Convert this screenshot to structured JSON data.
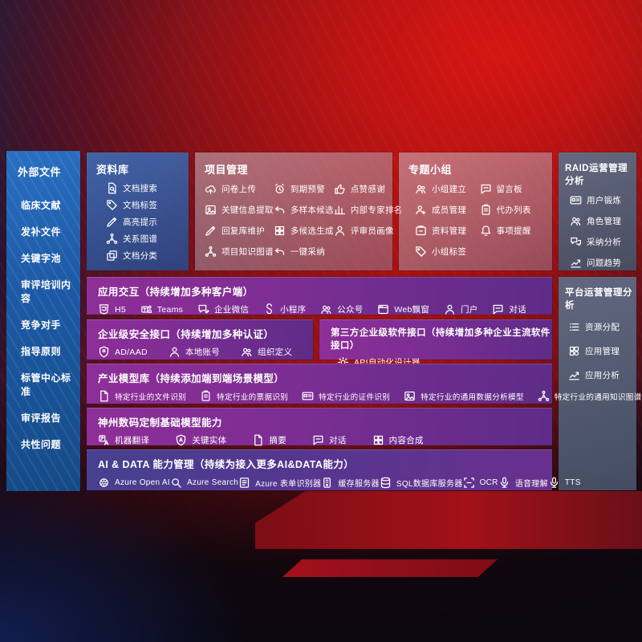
{
  "palette": {
    "bg_red": "#a61313",
    "bg_dark_blue": "#151b3a",
    "sidebar_blue": "#1d5aa6",
    "library_blue": "#3e6eb9",
    "grey_panel": "#9b8fa6",
    "slate_panel": "#566077",
    "row_purple": "#7b2d93",
    "row_indigo": "#45418f",
    "text": "#ffffff",
    "deco_red": "#a21117"
  },
  "sidebar": {
    "title": "外部文件",
    "items": [
      "临床文献",
      "发补文件",
      "关键字池",
      "审评培训内容",
      "竞争对手",
      "指导原则",
      "标管中心标准",
      "审评报告",
      "共性问题"
    ]
  },
  "library": {
    "title": "资料库",
    "items": [
      {
        "label": "文档搜索",
        "icon": "doc-search"
      },
      {
        "label": "文档标签",
        "icon": "doc-tag"
      },
      {
        "label": "高亮提示",
        "icon": "highlight-pen"
      },
      {
        "label": "关系图谱",
        "icon": "relation-graph"
      },
      {
        "label": "文档分类",
        "icon": "doc-classify"
      }
    ]
  },
  "project": {
    "title": "项目管理",
    "columns": [
      [
        {
          "label": "问卷上传",
          "icon": "cloud-upload"
        },
        {
          "label": "关键信息提取",
          "icon": "key-info-extract"
        },
        {
          "label": "回复库维护",
          "icon": "reply-maintain"
        },
        {
          "label": "项目知识图谱",
          "icon": "knowledge-graph"
        }
      ],
      [
        {
          "label": "到期预警",
          "icon": "due-alarm"
        },
        {
          "label": "多样本候选",
          "icon": "multi-sample"
        },
        {
          "label": "多候选生成",
          "icon": "multi-generate"
        },
        {
          "label": "一键采纳",
          "icon": "one-click-adopt"
        }
      ],
      [
        {
          "label": "点赞感谢",
          "icon": "thumbs-up"
        },
        {
          "label": "内部专家排名",
          "icon": "expert-rank"
        },
        {
          "label": "评审员画像",
          "icon": "reviewer-profile"
        }
      ]
    ]
  },
  "topic": {
    "title": "专题小组",
    "columns": [
      [
        {
          "label": "小组建立",
          "icon": "group-create"
        },
        {
          "label": "成员管理",
          "icon": "member-manage"
        },
        {
          "label": "资料管理",
          "icon": "material-manage"
        },
        {
          "label": "小组标签",
          "icon": "group-tag"
        }
      ],
      [
        {
          "label": "留言板",
          "icon": "bbs"
        },
        {
          "label": "代办列表",
          "icon": "todo-list"
        },
        {
          "label": "事项提醒",
          "icon": "reminder"
        }
      ]
    ]
  },
  "raid": {
    "title": "RAID运营管理分析",
    "items": [
      {
        "label": "用户锻炼",
        "icon": "user-card"
      },
      {
        "label": "角色管理",
        "icon": "role-manage"
      },
      {
        "label": "采纳分析",
        "icon": "adopt-analysis"
      },
      {
        "label": "问题趋势",
        "icon": "issue-trend"
      }
    ]
  },
  "platform": {
    "title": "平台运营管理分析",
    "items": [
      {
        "label": "资源分配",
        "icon": "resource-list"
      },
      {
        "label": "应用管理",
        "icon": "app-manage"
      },
      {
        "label": "应用分析",
        "icon": "app-analysis"
      }
    ]
  },
  "rows": {
    "interaction": {
      "title": "应用交互（持续增加多种客户端）",
      "items": [
        {
          "label": "H5",
          "icon": "html5"
        },
        {
          "label": "Teams",
          "icon": "teams"
        },
        {
          "label": "企业微信",
          "icon": "wechat-work"
        },
        {
          "label": "小程序",
          "icon": "mini-program"
        },
        {
          "label": "公众号",
          "icon": "official-account"
        },
        {
          "label": "Web飘窗",
          "icon": "web-window"
        },
        {
          "label": "门户",
          "icon": "portal"
        },
        {
          "label": "对话",
          "icon": "dialog"
        }
      ]
    },
    "security": {
      "title": "企业级安全接口（持续增加多种认证）",
      "items": [
        {
          "label": "AD/AAD",
          "icon": "ad-aad"
        },
        {
          "label": "本地账号",
          "icon": "local-account"
        },
        {
          "label": "组织定义",
          "icon": "org-define"
        }
      ]
    },
    "thirdparty": {
      "title": "第三方企业级软件接口（持续增加多种企业主流软件接口）",
      "items": [
        {
          "label": "API自动化设计器",
          "icon": "api-designer"
        }
      ]
    },
    "industry": {
      "title": "产业模型库（持续添加端到端场景模型）",
      "items": [
        {
          "label": "特定行业的文件识别",
          "icon": "file-recognition"
        },
        {
          "label": "特定行业的票据识别",
          "icon": "receipt-recognition"
        },
        {
          "label": "特定行业的证件识别",
          "icon": "card-recognition"
        },
        {
          "label": "特定行业的通用数据分析模型",
          "icon": "data-analysis-model"
        },
        {
          "label": "特定行业的通用知识图谱模型",
          "icon": "kg-model"
        }
      ]
    },
    "base_model": {
      "title": "神州数码定制基础模型能力",
      "items": [
        {
          "label": "机器翻译",
          "icon": "translate"
        },
        {
          "label": "关键实体",
          "icon": "key-entity"
        },
        {
          "label": "摘要",
          "icon": "summary"
        },
        {
          "label": "对话",
          "icon": "chat"
        },
        {
          "label": "内容合成",
          "icon": "compose"
        }
      ]
    },
    "ai_data": {
      "title": "AI & DATA 能力管理（持续为接入更多AI&DATA能力）",
      "items": [
        {
          "label": "Azure Open AI",
          "icon": "openai"
        },
        {
          "label": "Azure Search",
          "icon": "azure-search"
        },
        {
          "label": "Azure 表单识别器",
          "icon": "azure-form"
        },
        {
          "label": "缓存服务器",
          "icon": "cache-server"
        },
        {
          "label": "SQL数据库服务器",
          "icon": "sql-db"
        },
        {
          "label": "OCR",
          "icon": "ocr"
        },
        {
          "label": "语音理解",
          "icon": "speech"
        },
        {
          "label": "TTS",
          "icon": "tts"
        }
      ]
    }
  }
}
